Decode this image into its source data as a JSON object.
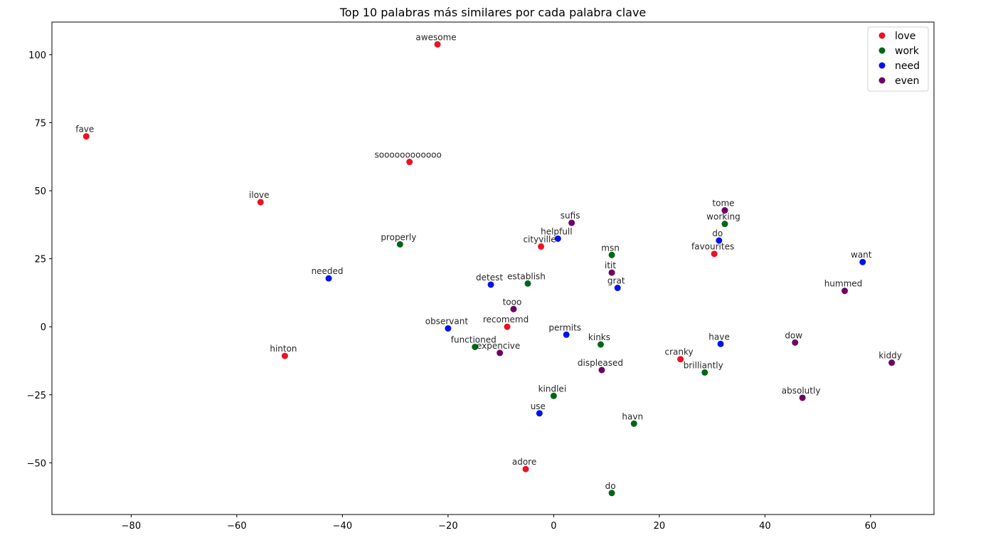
{
  "chart_data": {
    "type": "scatter",
    "title": "Top 10 palabras más similares por cada palabra clave",
    "xlabel": "",
    "ylabel": "",
    "xlim": [
      -95,
      72
    ],
    "ylim": [
      -69,
      112
    ],
    "xticks": [
      -80,
      -60,
      -40,
      -20,
      0,
      20,
      40,
      60
    ],
    "yticks": [
      -50,
      -25,
      0,
      25,
      50,
      75,
      100
    ],
    "xtick_labels": [
      "−80",
      "−60",
      "−40",
      "−20",
      "0",
      "20",
      "40",
      "60"
    ],
    "ytick_labels": [
      "−50",
      "−25",
      "0",
      "25",
      "50",
      "75",
      "100"
    ],
    "grid": false,
    "legend_position": "top-right",
    "series": [
      {
        "name": "love",
        "color": "#ee1122",
        "points": [
          {
            "label": "awesome",
            "x": -22.0,
            "y": 103.8
          },
          {
            "label": "fave",
            "x": -88.5,
            "y": 70.0
          },
          {
            "label": "soooooooooooo",
            "x": -27.3,
            "y": 60.6
          },
          {
            "label": "ilove",
            "x": -55.5,
            "y": 45.8
          },
          {
            "label": "cityville",
            "x": -2.4,
            "y": 29.5
          },
          {
            "label": "favourites",
            "x": 30.4,
            "y": 26.8
          },
          {
            "label": "recomemd",
            "x": -8.8,
            "y": 0.0
          },
          {
            "label": "hinton",
            "x": -50.9,
            "y": -10.7
          },
          {
            "label": "cranky",
            "x": 24.0,
            "y": -11.9
          },
          {
            "label": "adore",
            "x": -5.3,
            "y": -52.3
          }
        ]
      },
      {
        "name": "work",
        "color": "#006619",
        "points": [
          {
            "label": "working",
            "x": 32.4,
            "y": 37.8
          },
          {
            "label": "properly",
            "x": -29.1,
            "y": 30.3
          },
          {
            "label": "msn",
            "x": 11.0,
            "y": 26.4
          },
          {
            "label": "establish",
            "x": -4.9,
            "y": 15.9
          },
          {
            "label": "functioned",
            "x": -14.9,
            "y": -7.4
          },
          {
            "label": "kinks",
            "x": 8.9,
            "y": -6.5
          },
          {
            "label": "brilliantly",
            "x": 28.6,
            "y": -16.8
          },
          {
            "label": "kindlei",
            "x": 0.0,
            "y": -25.4
          },
          {
            "label": "havn",
            "x": 15.2,
            "y": -35.6
          },
          {
            "label": "do",
            "x": 11.0,
            "y": -61.1
          }
        ]
      },
      {
        "name": "need",
        "color": "#0011ee",
        "points": [
          {
            "label": "helpfull",
            "x": 0.8,
            "y": 32.4
          },
          {
            "label": "do",
            "x": 31.3,
            "y": 31.7
          },
          {
            "label": "want",
            "x": 58.5,
            "y": 23.8
          },
          {
            "label": "needed",
            "x": -42.6,
            "y": 17.8
          },
          {
            "label": "detest",
            "x": -11.9,
            "y": 15.5
          },
          {
            "label": "grat",
            "x": 12.1,
            "y": 14.3
          },
          {
            "label": "observant",
            "x": -20.0,
            "y": -0.6
          },
          {
            "label": "permits",
            "x": 2.4,
            "y": -2.9
          },
          {
            "label": "have",
            "x": 31.6,
            "y": -6.3
          },
          {
            "label": "use",
            "x": -2.7,
            "y": -31.8
          }
        ]
      },
      {
        "name": "even",
        "color": "#6e0066",
        "points": [
          {
            "label": "tome",
            "x": 32.4,
            "y": 42.8
          },
          {
            "label": "sufis",
            "x": 3.4,
            "y": 38.2
          },
          {
            "label": "itit",
            "x": 11.0,
            "y": 19.9
          },
          {
            "label": "hummed",
            "x": 55.1,
            "y": 13.2
          },
          {
            "label": "tooo",
            "x": -7.6,
            "y": 6.5
          },
          {
            "label": "dow",
            "x": 45.7,
            "y": -5.8
          },
          {
            "label": "expencive",
            "x": -10.2,
            "y": -9.6
          },
          {
            "label": "kiddy",
            "x": 64.0,
            "y": -13.2
          },
          {
            "label": "displeased",
            "x": 9.1,
            "y": -15.9
          },
          {
            "label": "absolutly",
            "x": 47.1,
            "y": -26.1
          }
        ]
      }
    ]
  }
}
